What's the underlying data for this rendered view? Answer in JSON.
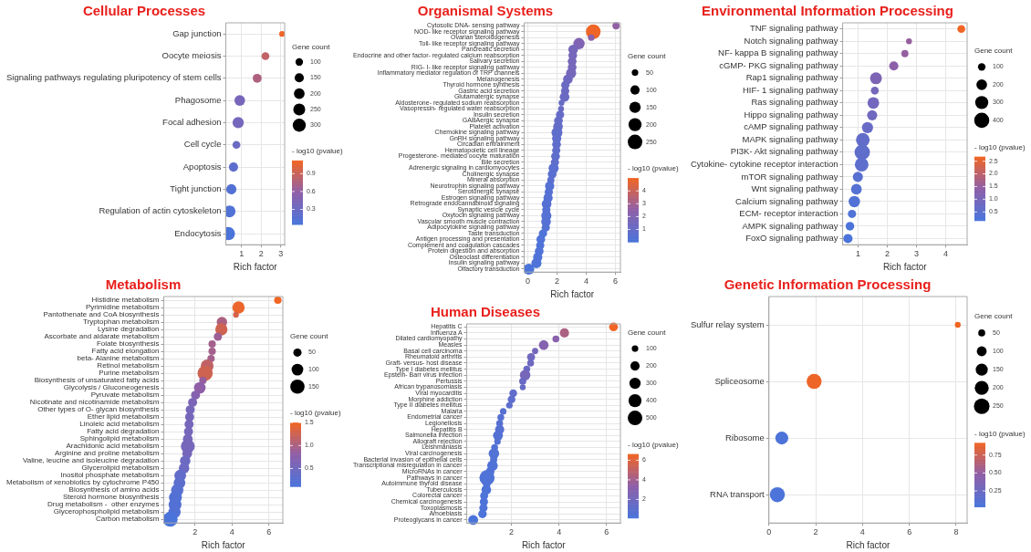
{
  "chart_data": [
    {
      "type": "bubble",
      "orientation": "horizontal",
      "title": "Cellular Processes",
      "xlabel": "Rich factor",
      "legend_title": "Gene count",
      "clabel": "- log10 (pvalue)",
      "grid": true,
      "categories": [
        "Gap junction",
        "Oocyte meiosis",
        "Signaling pathways regulating pluripotency of stem cells",
        "Phagosome",
        "Focal adhesion",
        "Cell cycle",
        "Apoptosis",
        "Tight junction",
        "Regulation of actin cytoskeleton",
        "Endocytosis"
      ],
      "values": [
        3.07,
        2.22,
        1.8,
        0.91,
        0.83,
        0.74,
        0.59,
        0.48,
        0.39,
        0.33
      ],
      "sizes": [
        60,
        110,
        140,
        200,
        220,
        110,
        150,
        180,
        250,
        310
      ],
      "cvalues": [
        1.1,
        0.85,
        0.75,
        0.4,
        0.38,
        0.3,
        0.2,
        0.12,
        0.1,
        0.06
      ],
      "size_legend": [
        100,
        150,
        200,
        250,
        300
      ],
      "clim": [
        0.05,
        1.12
      ],
      "cticks": [
        0.3,
        0.6,
        0.9
      ],
      "xlim": [
        0.2,
        3.2
      ],
      "xticks": [
        1,
        2,
        3
      ]
    },
    {
      "type": "bubble",
      "orientation": "horizontal",
      "title": "Organismal Systems",
      "xlabel": "Rich factor",
      "legend_title": "Gene count",
      "clabel": "- log10 (pvalue)",
      "grid": true,
      "categories": [
        "Cytosolic DNA- sensing pathway",
        "NOD- like receptor signaling pathway",
        "Ovarian steroidogenesis",
        "Toll- like receptor signaling pathway",
        "Pancreatic secretion",
        "Endocrine and other factor- regulated calcium reabsorption",
        "Salivary secretion",
        "RIG- I- like receptor signaling pathway",
        "Inflammatory mediator regulation of TRP channels",
        "Melanogenesis",
        "Thyroid hormone synthesis",
        "Gastric acid secretion",
        "Glutamatergic synapse",
        "Aldosterone- regulated sodium reabsorption",
        "Vasopressin- regulated water reabsorption",
        "Insulin secretion",
        "GABAergic synapse",
        "Platelet activation",
        "Chemokine signaling pathway",
        "GnRH signaling pathway",
        "Circadian entrainment",
        "Hematopoietic cell lineage",
        "Progesterone- mediated oocyte maturation",
        "Bile secretion",
        "Adrenergic signaling in cardiomyocytes",
        "Cholinergic synapse",
        "Mineral absorption",
        "Neurotrophin signaling pathway",
        "Serotonergic synapse",
        "Estrogen signaling pathway",
        "Retrograde endocannabinoid signaling",
        "Synaptic vesicle cycle",
        "Oxytocin signaling pathway",
        "Vascular smooth muscle contraction",
        "Adipocytokine signaling pathway",
        "Taste transduction",
        "Antigen processing and presentation",
        "Complement and coagulation cascades",
        "Protein digestion and absorption",
        "Osteoclast differentiation",
        "Insulin signaling pathway",
        "Olfactory transduction"
      ],
      "values": [
        6.05,
        4.49,
        4.35,
        3.51,
        3.11,
        3.08,
        3.04,
        3.04,
        2.97,
        2.75,
        2.57,
        2.56,
        2.52,
        2.31,
        2.28,
        2.21,
        2.1,
        2.07,
        2.0,
        1.98,
        1.97,
        1.95,
        1.9,
        1.86,
        1.77,
        1.67,
        1.58,
        1.5,
        1.44,
        1.39,
        1.29,
        1.27,
        1.27,
        1.25,
        1.23,
        1.04,
        0.89,
        0.85,
        0.78,
        0.68,
        0.59,
        0.07
      ],
      "sizes": [
        60,
        250,
        50,
        150,
        110,
        90,
        90,
        90,
        120,
        110,
        80,
        80,
        110,
        40,
        40,
        80,
        90,
        110,
        140,
        100,
        90,
        80,
        90,
        80,
        120,
        90,
        60,
        100,
        80,
        100,
        110,
        80,
        120,
        110,
        80,
        80,
        90,
        80,
        90,
        100,
        120,
        140
      ],
      "cvalues": [
        2.6,
        4.9,
        2.4,
        2.0,
        1.6,
        1.6,
        1.6,
        1.6,
        1.6,
        1.4,
        1.2,
        1.2,
        1.2,
        1.1,
        1.1,
        1.0,
        1.0,
        1.0,
        0.8,
        0.8,
        0.8,
        0.8,
        0.8,
        0.8,
        0.6,
        0.6,
        0.6,
        0.4,
        0.4,
        0.4,
        0.4,
        0.4,
        0.4,
        0.4,
        0.4,
        0.2,
        0.2,
        0.2,
        0.2,
        0.2,
        0.2,
        0.05
      ],
      "size_legend": [
        50,
        100,
        150,
        200,
        250
      ],
      "clim": [
        0.03,
        5.0
      ],
      "cticks": [
        1,
        2,
        3,
        4
      ],
      "xlim": [
        -0.25,
        6.35
      ],
      "xticks": [
        0,
        2,
        4,
        6
      ]
    },
    {
      "type": "bubble",
      "orientation": "horizontal",
      "title": "Environmental Information Processing",
      "xlabel": "Rich factor",
      "legend_title": "Gene count",
      "clabel": "- log10 (pvalue)",
      "grid": true,
      "categories": [
        "TNF signaling pathway",
        "Notch signaling pathway",
        "NF- kappa B signaling pathway",
        "cGMP- PKG signaling pathway",
        "Rap1 signaling pathway",
        "HIF- 1 signaling pathway",
        "Ras signaling pathway",
        "Hippo signaling pathway",
        "cAMP signaling pathway",
        "MAPK signaling pathway",
        "PI3K- Akt signaling pathway",
        "Cytokine- cytokine receptor interaction",
        "mTOR signaling pathway",
        "Wnt signaling pathway",
        "Calcium signaling pathway",
        "ECM- receptor interaction",
        "AMPK signaling pathway",
        "FoxO signaling pathway"
      ],
      "values": [
        4.53,
        2.74,
        2.6,
        2.22,
        1.61,
        1.57,
        1.52,
        1.48,
        1.32,
        1.16,
        1.14,
        1.12,
        0.99,
        0.94,
        0.87,
        0.79,
        0.72,
        0.65
      ],
      "sizes": [
        110,
        60,
        90,
        150,
        250,
        110,
        240,
        180,
        220,
        330,
        420,
        330,
        180,
        200,
        230,
        120,
        130,
        150
      ],
      "cvalues": [
        2.65,
        1.5,
        1.5,
        1.4,
        1.1,
        0.95,
        0.9,
        0.85,
        0.7,
        0.6,
        0.55,
        0.5,
        0.4,
        0.35,
        0.3,
        0.25,
        0.2,
        0.18
      ],
      "size_legend": [
        100,
        200,
        300,
        400
      ],
      "clim": [
        0.16,
        2.68
      ],
      "cticks": [
        {
          "value": 0.5,
          "label": "0.5"
        },
        {
          "value": 1,
          "label": "1.0"
        },
        {
          "value": 1.5,
          "label": "1.5"
        },
        {
          "value": 2,
          "label": "2.0"
        },
        {
          "value": 2.5,
          "label": "2.5"
        }
      ],
      "xlim": [
        0.47,
        4.73
      ],
      "xticks": [
        1,
        2,
        3,
        4
      ]
    },
    {
      "type": "bubble",
      "orientation": "horizontal",
      "title": "Metabolism",
      "xlabel": "Rich factor",
      "legend_title": "Gene count",
      "clabel": "- log10 (pvalue)",
      "grid": true,
      "categories": [
        "Histidine metabolism",
        "Pyrimidine metabolism",
        "Pantothenate and CoA biosynthesis",
        "Tryptophan metabolism",
        "Lysine degradation",
        "Ascorbate and aldarate metabolism",
        "Folate biosynthesis",
        "Fatty acid elongation",
        "beta- Alanine metabolism",
        "Retinol metabolism",
        "Purine metabolism",
        "Biosynthesis of unsaturated fatty acids",
        "Glycolysis / Gluconeogenesis",
        "Pyruvate metabolism",
        "Nicotinate and nicotinamide metabolism",
        "Other types of O- glycan biosynthesis",
        "Ether lipid metabolism",
        "Linoleic acid metabolism",
        "Fatty acid degradation",
        "Sphingolipid metabolism",
        "Arachidonic acid metabolism",
        "Arginine and proline metabolism",
        "Valine, leucine and isoleucine degradation",
        "Glycerolipid metabolism",
        "Inositol phosphate metabolism",
        "Metabolism of xenobiotics by cytochrome P450",
        "Biosynthesis of amino acids",
        "Steroid hormone biosynthesis",
        "Drug metabolism -  other enzymes",
        "Glycerophospholipid metabolism",
        "Carbon metabolism"
      ],
      "values": [
        6.49,
        4.36,
        4.22,
        3.46,
        3.43,
        3.24,
        2.93,
        2.93,
        2.87,
        2.66,
        2.55,
        2.43,
        2.26,
        2.03,
        1.87,
        1.74,
        1.71,
        1.68,
        1.65,
        1.61,
        1.61,
        1.58,
        1.47,
        1.41,
        1.2,
        1.16,
        1.04,
        0.94,
        0.92,
        0.89,
        0.66
      ],
      "sizes": [
        40,
        110,
        25,
        80,
        110,
        50,
        40,
        40,
        40,
        120,
        170,
        40,
        100,
        60,
        60,
        60,
        60,
        60,
        60,
        70,
        140,
        70,
        80,
        80,
        100,
        100,
        110,
        120,
        120,
        110,
        160
      ],
      "cvalues": [
        1.5,
        1.45,
        1.3,
        1.0,
        1.25,
        0.9,
        0.95,
        0.95,
        0.95,
        1.15,
        1.25,
        0.85,
        0.8,
        0.7,
        0.6,
        0.55,
        0.55,
        0.55,
        0.55,
        0.55,
        0.55,
        0.55,
        0.45,
        0.45,
        0.35,
        0.3,
        0.25,
        0.2,
        0.2,
        0.2,
        0.12
      ],
      "size_legend": [
        50,
        100,
        150
      ],
      "clim": [
        0.11,
        1.5
      ],
      "cticks": [
        0.5,
        {
          "value": 1,
          "label": "1.0"
        },
        1.5
      ],
      "xlim": [
        0.31,
        6.76
      ],
      "xticks": [
        2,
        4,
        6
      ]
    },
    {
      "type": "bubble",
      "orientation": "horizontal",
      "title": "Human Diseases",
      "xlabel": "Rich factor",
      "legend_title": "Gene count",
      "clabel": "- log10 (pvalue)",
      "grid": true,
      "categories": [
        "Hepatitis C",
        "Influenza A",
        "Dilated cardiomyopathy",
        "Measles",
        "Basal cell carcinoma",
        "Rheumatoid arthritis",
        "Graft- versus- host disease",
        "Type I diabetes mellitus",
        "Epstein- Barr virus infection",
        "Pertussis",
        "African trypanosomiasis",
        "Viral myocarditis",
        "Morphine addiction",
        "Type II diabetes mellitus",
        "Malaria",
        "Endometrial cancer",
        "Legionellosis",
        "Hepatitis B",
        "Salmonella infection",
        "Allograft rejection",
        "Leishmaniasis",
        "Viral carcinogenesis",
        "Bacterial invasion of epithelial cells",
        "Transcriptional misregulation in cancer",
        "MicroRNAs in cancer",
        "Pathways in cancer",
        "Autoimmune thyroid disease",
        "Tuberculosis",
        "Colorectal cancer",
        "Chemical carcinogenesis",
        "Toxoplasmosis",
        "Amoebiasis",
        "Proteoglycans in cancer"
      ],
      "values": [
        6.29,
        4.23,
        3.87,
        3.36,
        3.0,
        2.83,
        2.81,
        2.65,
        2.58,
        2.48,
        2.48,
        2.08,
        2.01,
        1.92,
        1.66,
        1.56,
        1.51,
        1.51,
        1.44,
        1.42,
        1.3,
        1.27,
        1.26,
        1.21,
        1.11,
        0.98,
        0.97,
        0.95,
        0.86,
        0.85,
        0.83,
        0.79,
        0.4
      ],
      "sizes": [
        180,
        200,
        110,
        220,
        90,
        150,
        110,
        110,
        260,
        120,
        80,
        140,
        140,
        100,
        100,
        110,
        110,
        200,
        230,
        100,
        110,
        260,
        120,
        260,
        180,
        540,
        150,
        220,
        150,
        160,
        160,
        170,
        230
      ],
      "cvalues": [
        6.6,
        4.3,
        3.1,
        2.9,
        2.1,
        1.9,
        1.8,
        1.7,
        2.3,
        1.6,
        1.5,
        1.2,
        1.1,
        1.0,
        0.8,
        0.7,
        0.7,
        0.7,
        0.6,
        0.6,
        0.5,
        0.5,
        0.5,
        0.4,
        0.4,
        0.35,
        0.3,
        0.3,
        0.25,
        0.25,
        0.25,
        0.2,
        0.15
      ],
      "size_legend": [
        100,
        200,
        300,
        400,
        500
      ],
      "clim": [
        0.12,
        6.64
      ],
      "cticks": [
        2,
        4,
        6
      ],
      "xlim": [
        0.13,
        6.58
      ],
      "xticks": [
        2,
        4,
        6
      ]
    },
    {
      "type": "bubble",
      "orientation": "horizontal",
      "title": "Genetic Information Processing",
      "xlabel": "Rich factor",
      "legend_title": "Gene count",
      "clabel": "- log10 (pvalue)",
      "grid": true,
      "categories": [
        "Sulfur relay system",
        "Spliceosome",
        "Ribosome",
        "RNA transport"
      ],
      "values": [
        8.07,
        1.93,
        0.55,
        0.36
      ],
      "sizes": [
        35,
        230,
        170,
        230
      ],
      "cvalues": [
        0.92,
        0.9,
        0.05,
        0.04
      ],
      "size_legend": [
        50,
        100,
        150,
        200,
        250
      ],
      "clim": [
        0.03,
        0.92
      ],
      "cticks": [
        {
          "value": 0.25,
          "label": "0.25"
        },
        {
          "value": 0.5,
          "label": "0.50"
        },
        {
          "value": 0.75,
          "label": "0.75"
        }
      ],
      "xlim": [
        0,
        8.47
      ],
      "xticks": [
        0,
        2,
        4,
        6,
        8
      ]
    }
  ]
}
